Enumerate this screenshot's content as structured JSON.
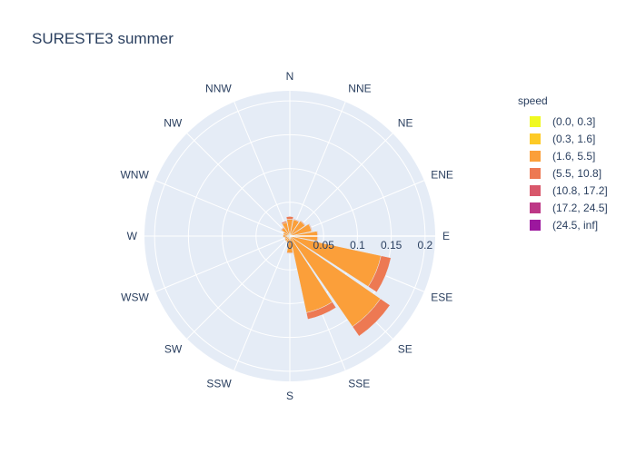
{
  "title": "SURESTE3 summer",
  "chart_data": {
    "type": "barpolar",
    "title": "SURESTE3 summer",
    "directions": [
      "N",
      "NNE",
      "NE",
      "ENE",
      "E",
      "ESE",
      "SE",
      "SSE",
      "S",
      "SSW",
      "SW",
      "WSW",
      "W",
      "WNW",
      "NW",
      "NNW"
    ],
    "radial_ticks": [
      "0",
      "0.05",
      "0.1",
      "0.15",
      "0.2"
    ],
    "radial_tick_values": [
      0,
      0.05,
      0.1,
      0.15,
      0.2
    ],
    "radial_range": [
      0,
      0.215
    ],
    "legend_title": "speed",
    "series": [
      {
        "name": "(0.0, 0.3]",
        "color": "#f0f921",
        "values": [
          0.001,
          0.001,
          0.001,
          0.001,
          0.001,
          0.001,
          0.001,
          0.001,
          0.001,
          0.001,
          0.001,
          0.001,
          0.001,
          0.001,
          0.001,
          0.001
        ]
      },
      {
        "name": "(0.3, 1.6]",
        "color": "#fdca26",
        "values": [
          0.002,
          0.002,
          0.002,
          0.002,
          0.002,
          0.002,
          0.002,
          0.002,
          0.002,
          0.002,
          0.002,
          0.002,
          0.003,
          0.002,
          0.002,
          0.002
        ]
      },
      {
        "name": "(1.6, 5.5]",
        "color": "#fb9f3a",
        "values": [
          0.022,
          0.022,
          0.024,
          0.03,
          0.038,
          0.135,
          0.16,
          0.113,
          0.022,
          0.007,
          0.006,
          0.005,
          0.006,
          0.007,
          0.012,
          0.018
        ]
      },
      {
        "name": "(5.5, 10.8]",
        "color": "#ed7953",
        "values": [
          0.004,
          0.001,
          0.001,
          0.001,
          0.001,
          0.015,
          0.017,
          0.01,
          0.001,
          0,
          0,
          0,
          0,
          0,
          0.001,
          0.002
        ]
      },
      {
        "name": "(10.8, 17.2]",
        "color": "#d8576b",
        "values": [
          0,
          0,
          0,
          0,
          0,
          0,
          0,
          0,
          0,
          0,
          0,
          0,
          0,
          0,
          0,
          0
        ]
      },
      {
        "name": "(17.2, 24.5]",
        "color": "#bd3786",
        "values": [
          0,
          0,
          0,
          0,
          0,
          0,
          0,
          0,
          0,
          0,
          0,
          0,
          0,
          0,
          0,
          0
        ]
      },
      {
        "name": "(24.5, inf]",
        "color": "#9c179e",
        "values": [
          0,
          0,
          0,
          0,
          0,
          0,
          0,
          0,
          0,
          0,
          0,
          0,
          0,
          0,
          0,
          0
        ]
      }
    ]
  }
}
